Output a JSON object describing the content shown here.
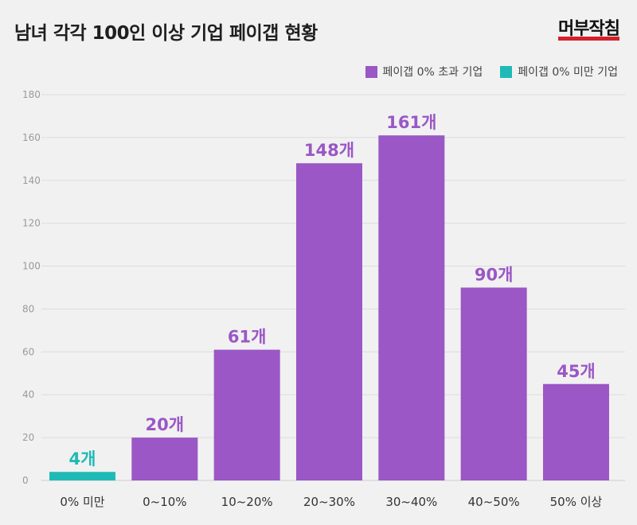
{
  "title": "남녀 각각 100인 이상 기업 페이갭 현황",
  "logo": {
    "text": "머부작침"
  },
  "legend": [
    {
      "label": "페이갭 0% 초과 기업",
      "color": "#9a57c5"
    },
    {
      "label": "페이갭 0% 미만 기업",
      "color": "#1fbab6"
    }
  ],
  "chart_data": {
    "type": "bar",
    "categories": [
      "0% 미만",
      "0~10%",
      "10~20%",
      "20~30%",
      "30~40%",
      "40~50%",
      "50% 이상"
    ],
    "values": [
      4,
      20,
      61,
      148,
      161,
      90,
      45
    ],
    "value_labels": [
      "4개",
      "20개",
      "61개",
      "148개",
      "161개",
      "90개",
      "45개"
    ],
    "bar_series": [
      "페이갭 0% 미만 기업",
      "페이갭 0% 초과 기업",
      "페이갭 0% 초과 기업",
      "페이갭 0% 초과 기업",
      "페이갭 0% 초과 기업",
      "페이갭 0% 초과 기업",
      "페이갭 0% 초과 기업"
    ],
    "ylim": [
      0,
      180
    ],
    "yticks": [
      0,
      20,
      40,
      60,
      80,
      100,
      120,
      140,
      160,
      180
    ],
    "grid": true,
    "legend_position": "top-right",
    "colors": {
      "positive": "#9a57c5",
      "negative": "#1fbab6"
    }
  }
}
